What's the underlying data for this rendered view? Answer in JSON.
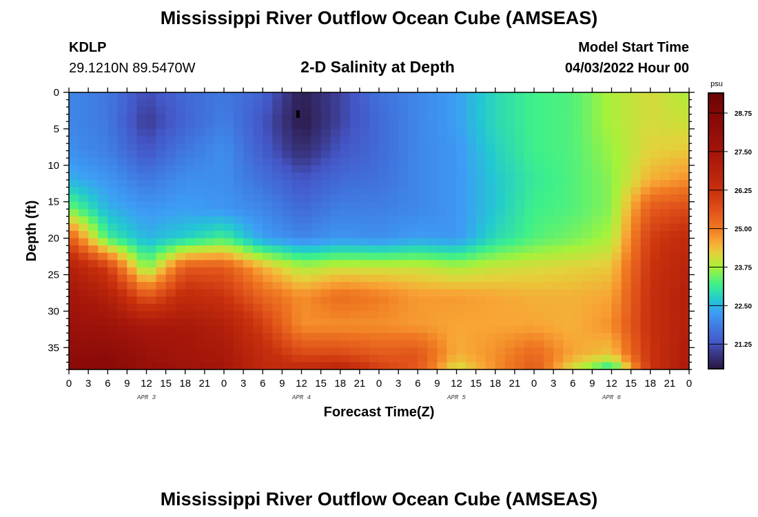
{
  "header": {
    "title": "Mississippi River Outflow Ocean Cube (AMSEAS)",
    "station": "KDLP",
    "coordinates": "29.1210N  89.5470W",
    "plot_title": "2-D Salinity at Depth",
    "model_start_label": "Model Start Time",
    "model_start_value": "04/03/2022 Hour 00"
  },
  "footer": {
    "title": "Mississippi River Outflow Ocean Cube (AMSEAS)"
  },
  "chart_data": {
    "type": "heatmap",
    "title": "2-D Salinity at Depth",
    "xlabel": "Forecast Time(Z)",
    "ylabel": "Depth (ft)",
    "xlim": [
      0,
      96
    ],
    "ylim": [
      0,
      38
    ],
    "y_inverted": true,
    "x_ticks": [
      0,
      3,
      6,
      9,
      12,
      15,
      18,
      21,
      24,
      27,
      30,
      33,
      36,
      39,
      42,
      45,
      48,
      51,
      54,
      57,
      60,
      63,
      66,
      69,
      72,
      75,
      78,
      81,
      84,
      87,
      90,
      93,
      96
    ],
    "x_tick_labels": [
      "0",
      "3",
      "6",
      "9",
      "12",
      "15",
      "18",
      "21",
      "0",
      "3",
      "6",
      "9",
      "12",
      "15",
      "18",
      "21",
      "0",
      "3",
      "6",
      "9",
      "12",
      "15",
      "18",
      "21",
      "0",
      "3",
      "6",
      "9",
      "12",
      "15",
      "18",
      "21",
      "0"
    ],
    "day_labels": [
      {
        "label": "APR 3",
        "hour": 12
      },
      {
        "label": "APR 4",
        "hour": 36
      },
      {
        "label": "APR 5",
        "hour": 60
      },
      {
        "label": "APR 6",
        "hour": 84
      }
    ],
    "y_ticks": [
      0,
      5,
      10,
      15,
      20,
      25,
      30,
      35
    ],
    "y_tick_labels": [
      "0",
      "5",
      "10",
      "15",
      "20",
      "25",
      "30",
      "35"
    ],
    "colorbar": {
      "units": "psu",
      "range": [
        20.45,
        29.4
      ],
      "ticks": [
        21.25,
        22.5,
        23.75,
        25.0,
        26.25,
        27.5,
        28.75
      ],
      "tick_labels": [
        "21.25",
        "22.50",
        "23.75",
        "25.00",
        "26.25",
        "27.50",
        "28.75"
      ],
      "stops": [
        [
          20.45,
          "#2a1640"
        ],
        [
          21.0,
          "#3b3a8c"
        ],
        [
          21.3,
          "#4456c6"
        ],
        [
          21.8,
          "#4078e0"
        ],
        [
          22.3,
          "#3d9ef5"
        ],
        [
          22.7,
          "#22c8d2"
        ],
        [
          23.2,
          "#3ef08a"
        ],
        [
          23.75,
          "#a6f23a"
        ],
        [
          24.2,
          "#e3d33a"
        ],
        [
          24.6,
          "#f8a535"
        ],
        [
          25.0,
          "#f07a22"
        ],
        [
          25.6,
          "#e0531a"
        ],
        [
          26.25,
          "#c8300d"
        ],
        [
          27.5,
          "#a3150a"
        ],
        [
          28.75,
          "#820808"
        ],
        [
          29.4,
          "#6a0505"
        ]
      ]
    },
    "hours": [
      0,
      6,
      12,
      18,
      24,
      30,
      36,
      42,
      48,
      54,
      60,
      66,
      72,
      78,
      84,
      90,
      96
    ],
    "depths": [
      0,
      4,
      8,
      12,
      16,
      20,
      24,
      28,
      32,
      36,
      38
    ],
    "salinity": [
      [
        22.0,
        22.0,
        22.1,
        22.5,
        23.5,
        25.5,
        27.0,
        27.5,
        27.8,
        28.3,
        28.5
      ],
      [
        21.8,
        21.8,
        21.9,
        22.2,
        22.5,
        23.2,
        26.0,
        27.0,
        27.7,
        28.3,
        28.5
      ],
      [
        21.2,
        21.0,
        21.3,
        21.8,
        22.2,
        22.5,
        23.5,
        25.5,
        27.3,
        27.8,
        28.0
      ],
      [
        21.6,
        21.5,
        21.8,
        22.1,
        22.3,
        22.8,
        25.5,
        26.5,
        27.3,
        27.5,
        27.7
      ],
      [
        21.8,
        21.9,
        22.1,
        22.1,
        22.2,
        23.2,
        25.5,
        26.2,
        27.0,
        27.3,
        27.5
      ],
      [
        21.5,
        21.3,
        21.4,
        21.7,
        22.0,
        22.3,
        24.5,
        25.3,
        26.0,
        26.5,
        26.5
      ],
      [
        20.6,
        20.5,
        20.8,
        21.3,
        21.6,
        22.0,
        23.8,
        24.8,
        24.8,
        25.8,
        26.5
      ],
      [
        21.1,
        21.1,
        21.3,
        21.6,
        21.9,
        22.2,
        24.0,
        25.2,
        24.8,
        25.8,
        26.8
      ],
      [
        21.7,
        21.6,
        21.6,
        21.7,
        21.9,
        22.1,
        24.0,
        25.0,
        24.8,
        25.5,
        26.0
      ],
      [
        22.0,
        22.0,
        22.0,
        22.0,
        22.0,
        22.3,
        24.0,
        24.7,
        24.7,
        25.6,
        25.5
      ],
      [
        22.3,
        22.3,
        22.2,
        22.2,
        22.2,
        22.2,
        23.8,
        24.7,
        24.6,
        24.5,
        24.0
      ],
      [
        22.9,
        22.9,
        22.8,
        22.7,
        22.7,
        22.9,
        24.0,
        24.6,
        24.6,
        24.8,
        24.8
      ],
      [
        23.2,
        23.2,
        23.2,
        23.1,
        23.2,
        23.3,
        24.1,
        24.5,
        24.6,
        25.3,
        25.5
      ],
      [
        23.3,
        23.3,
        23.3,
        23.3,
        23.3,
        23.5,
        24.2,
        24.5,
        24.5,
        24.6,
        24.0
      ],
      [
        23.8,
        23.8,
        23.7,
        23.6,
        23.6,
        23.8,
        24.3,
        24.6,
        24.8,
        24.3,
        22.8
      ],
      [
        24.1,
        24.1,
        24.2,
        24.5,
        25.5,
        26.0,
        26.2,
        26.3,
        26.3,
        26.2,
        26.2
      ],
      [
        23.8,
        24.0,
        24.3,
        24.8,
        25.8,
        26.5,
        26.8,
        27.0,
        27.0,
        27.2,
        27.3
      ]
    ]
  }
}
